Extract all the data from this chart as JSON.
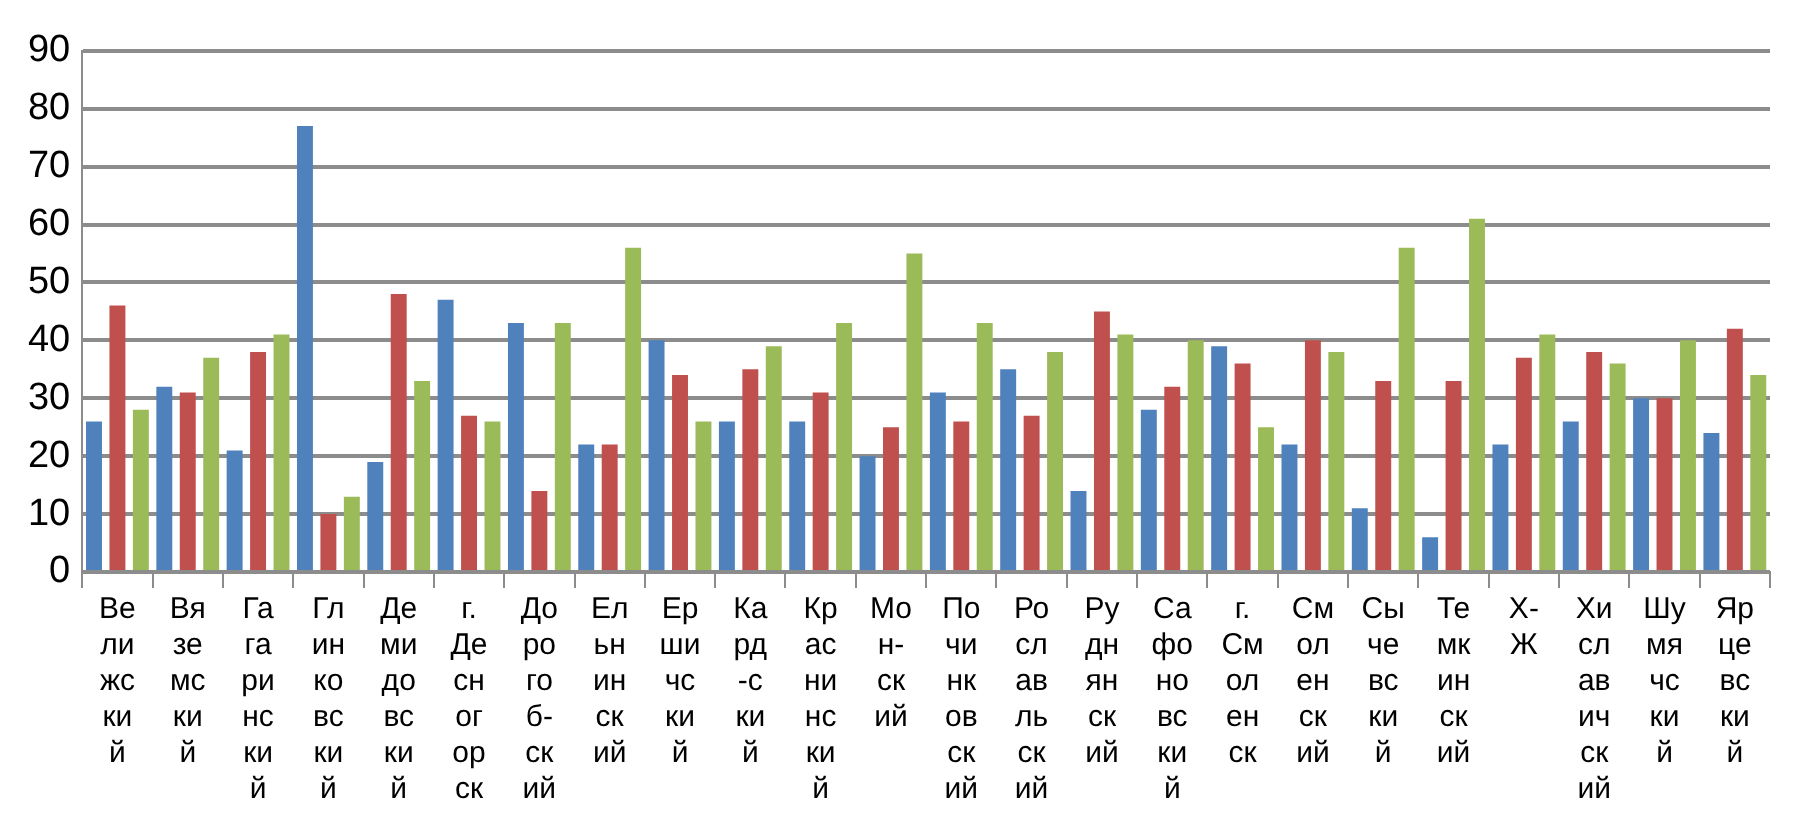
{
  "chart_data": {
    "type": "bar",
    "categories": [
      "Велижский",
      "Вяземский",
      "Гагаринский",
      "Глинковский",
      "Демидовский",
      "г. Десногорск",
      "Дорогоб-ский",
      "Ельнинский",
      "Ершичский",
      "Кард-ский",
      "Краснинский",
      "Мон-ский",
      "Починковский",
      "Рославльский",
      "Руднянский",
      "Сафоновский",
      "г. Смоленск",
      "Смоленский",
      "Сычевский",
      "Темкинский",
      "Х-Ж",
      "Хиславичский",
      "Шумячский",
      "Ярцевский"
    ],
    "series": [
      {
        "color": "#4f81bd",
        "values": [
          26,
          32,
          21,
          77,
          19,
          47,
          43,
          22,
          40,
          26,
          26,
          20,
          31,
          35,
          14,
          28,
          39,
          22,
          11,
          6,
          22,
          26,
          30,
          24
        ]
      },
      {
        "color": "#c0504d",
        "values": [
          46,
          31,
          38,
          10,
          48,
          27,
          14,
          22,
          34,
          35,
          31,
          25,
          26,
          27,
          45,
          32,
          36,
          40,
          33,
          33,
          37,
          38,
          30,
          42
        ]
      },
      {
        "color": "#9bbb59",
        "values": [
          28,
          37,
          41,
          13,
          33,
          26,
          43,
          56,
          26,
          39,
          43,
          55,
          43,
          38,
          41,
          40,
          25,
          38,
          56,
          61,
          41,
          36,
          40,
          34
        ]
      }
    ],
    "ylim": [
      0,
      90
    ],
    "yticks": [
      0,
      10,
      20,
      30,
      40,
      50,
      60,
      70,
      80,
      90
    ],
    "grid": "y",
    "legend": false
  }
}
